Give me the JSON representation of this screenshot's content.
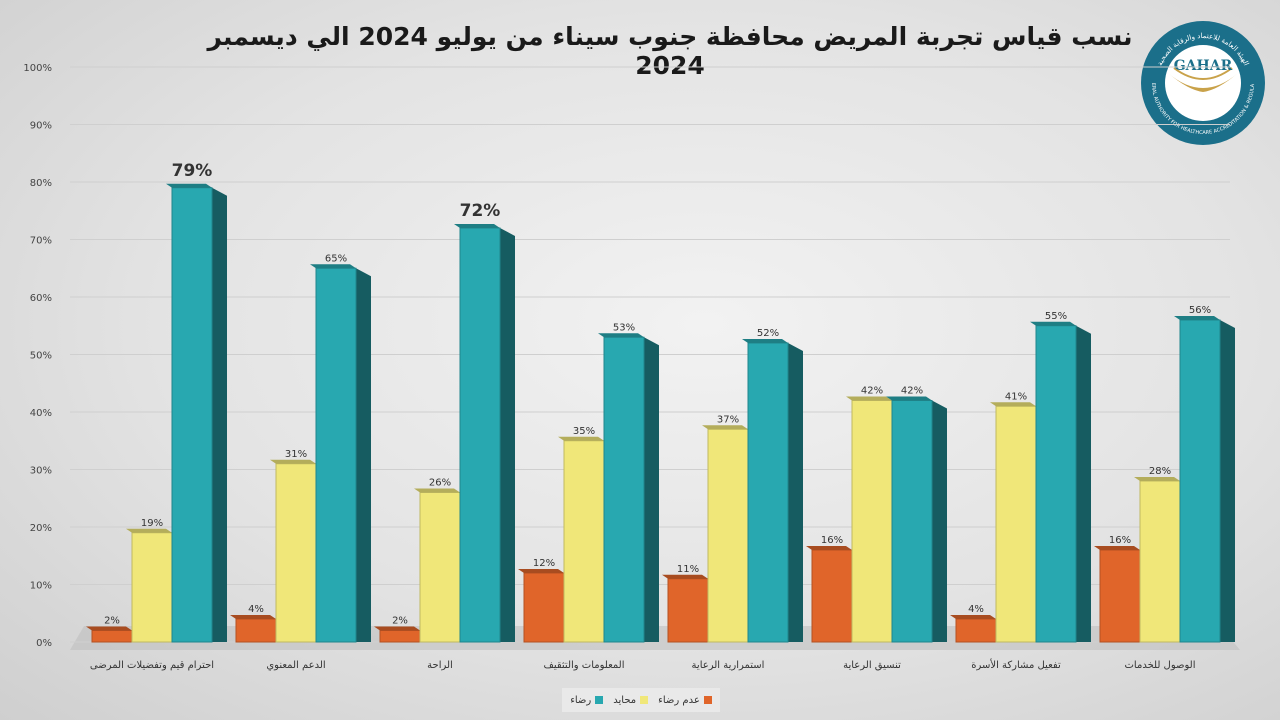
{
  "chart_data": {
    "type": "bar",
    "title": "نسب قياس تجربة المريض محافظة جنوب سيناء من يوليو 2024 الي ديسمبر 2024",
    "categories": [
      "احترام قيم وتفضيلات المرضى",
      "الدعم المعنوي",
      "الراحة",
      "المعلومات والتثقيف",
      "استمرارية الرعاية",
      "تنسيق الرعاية",
      "تفعيل مشاركة الأسرة",
      "الوصول للخدمات"
    ],
    "series": [
      {
        "name": "عدم رضاء",
        "color": "#e0652a",
        "values": [
          2,
          4,
          2,
          12,
          11,
          16,
          4,
          16
        ]
      },
      {
        "name": "محايد",
        "color": "#f0e779",
        "values": [
          19,
          31,
          26,
          35,
          37,
          42,
          41,
          28
        ]
      },
      {
        "name": "رضاء",
        "color": "#28a8b0",
        "values": [
          79,
          65,
          72,
          53,
          52,
          42,
          55,
          56
        ]
      }
    ],
    "value_labels": [
      [
        "2%",
        "19%",
        "79%"
      ],
      [
        "4%",
        "31%",
        "65%"
      ],
      [
        "2%",
        "26%",
        "72%"
      ],
      [
        "12%",
        "35%",
        "53%"
      ],
      [
        "11%",
        "37%",
        "52%"
      ],
      [
        "16%",
        "42%",
        "42%"
      ],
      [
        "4%",
        "41%",
        "55%"
      ],
      [
        "16%",
        "28%",
        "56%"
      ]
    ],
    "highlighted_labels": [
      [
        0,
        2
      ],
      [
        2,
        2
      ]
    ],
    "y_ticks": [
      "0%",
      "10%",
      "20%",
      "30%",
      "40%",
      "50%",
      "60%",
      "70%",
      "80%",
      "90%",
      "100%"
    ],
    "ylim": [
      0,
      100
    ],
    "grid": true,
    "legend_position": "bottom-center"
  },
  "logo": {
    "text": "GAHAR",
    "ring_text": "الهيئة العامة للاعتماد والرقابة الصحية",
    "ring_text_en": "GENERAL AUTHORITY FOR HEALTHCARE ACCREDITATION & REGULATION",
    "colors": {
      "ring": "#1b6f8a",
      "inner": "#2a86a3",
      "wing": "#c9a24a"
    }
  }
}
